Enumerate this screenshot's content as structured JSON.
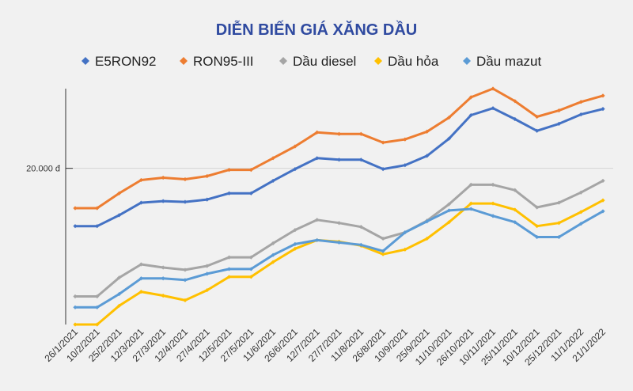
{
  "chart_data": {
    "type": "line",
    "title": "DIỄN BIẾN GIÁ XĂNG DẦU",
    "xlabel": "",
    "ylabel": "",
    "ylim": [
      10000,
      25100
    ],
    "y_ticks": [
      {
        "value": 20000,
        "label": "20.000 đ"
      }
    ],
    "grid": "horizontal",
    "legend_position": "top",
    "categories": [
      "26/1/2021",
      "10/2/2021",
      "25/2/2021",
      "12/3/2021",
      "27/3/2021",
      "12/4/2021",
      "27/4/2021",
      "12/5/2021",
      "27/5/2021",
      "11/6/2021",
      "26/6/2021",
      "12/7/2021",
      "27/7/2021",
      "11/8/2021",
      "26/8/2021",
      "10/9/2021",
      "25/9/2021",
      "11/10/2021",
      "26/10/2021",
      "10/11/2021",
      "25/11/2021",
      "10/12/2021",
      "25/12/2021",
      "11/1/2022",
      "21/1/2022"
    ],
    "series": [
      {
        "name": "E5RON92",
        "color": "#4472c4",
        "values": [
          16300,
          16300,
          17000,
          17800,
          17900,
          17850,
          18000,
          18400,
          18400,
          19200,
          19950,
          20650,
          20550,
          20550,
          19950,
          20200,
          20800,
          21900,
          23400,
          23850,
          23150,
          22400,
          22850,
          23450,
          23800
        ]
      },
      {
        "name": "RON95-III",
        "color": "#ed7d31",
        "values": [
          17450,
          17450,
          18400,
          19250,
          19400,
          19300,
          19500,
          19900,
          19900,
          20650,
          21400,
          22300,
          22200,
          22200,
          21650,
          21850,
          22350,
          23250,
          24550,
          25100,
          24300,
          23300,
          23700,
          24250,
          24650
        ]
      },
      {
        "name": "Dầu diesel",
        "color": "#a5a5a5",
        "values": [
          11800,
          11800,
          13000,
          13850,
          13650,
          13500,
          13750,
          14300,
          14300,
          15200,
          16050,
          16700,
          16500,
          16250,
          15500,
          15900,
          16650,
          17700,
          18950,
          18950,
          18600,
          17500,
          17800,
          18450,
          19200
        ]
      },
      {
        "name": "Dầu hỏa",
        "color": "#ffc000",
        "values": [
          10000,
          10000,
          11200,
          12100,
          11850,
          11550,
          12200,
          13050,
          13050,
          14000,
          14850,
          15400,
          15300,
          15050,
          14500,
          14800,
          15500,
          16550,
          17750,
          17750,
          17350,
          16300,
          16500,
          17200,
          17950
        ]
      },
      {
        "name": "Dầu mazut",
        "color": "#5b9bd5",
        "values": [
          11100,
          11100,
          11950,
          12950,
          12950,
          12850,
          13250,
          13550,
          13550,
          14450,
          15150,
          15400,
          15250,
          15100,
          14700,
          15900,
          16600,
          17300,
          17400,
          16950,
          16550,
          15600,
          15600,
          16450,
          17250
        ]
      }
    ]
  }
}
